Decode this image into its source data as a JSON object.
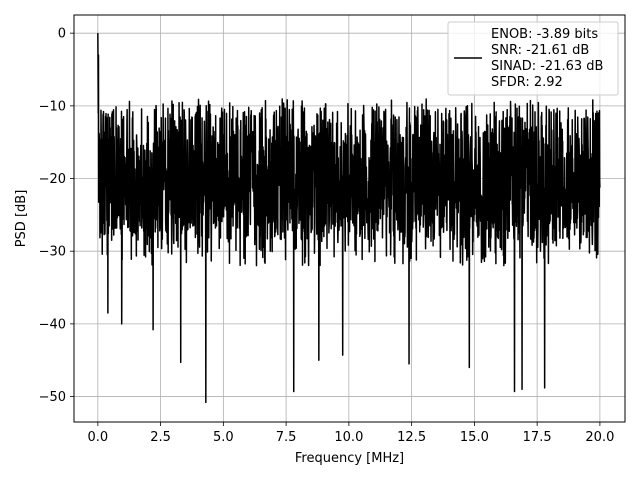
{
  "chart_data": {
    "type": "line",
    "title": "",
    "xlabel": "Frequency [MHz]",
    "ylabel": "PSD [dB]",
    "xlim": [
      -0.95,
      21.0
    ],
    "ylim": [
      -53.5,
      2.5
    ],
    "xticks": [
      0.0,
      2.5,
      5.0,
      7.5,
      10.0,
      12.5,
      15.0,
      17.5,
      20.0
    ],
    "xtick_labels": [
      "0.0",
      "2.5",
      "5.0",
      "7.5",
      "10.0",
      "12.5",
      "15.0",
      "17.5",
      "20.0"
    ],
    "yticks": [
      0,
      -10,
      -20,
      -30,
      -40,
      -50
    ],
    "ytick_labels": [
      "0",
      "−10",
      "−20",
      "−30",
      "−40",
      "−50"
    ],
    "grid": true,
    "legend_position": "top-right",
    "series": [
      {
        "color": "#000000",
        "x_range": [
          0.0,
          20.0
        ],
        "peak": {
          "x": 0.0,
          "y": 0
        },
        "noise_floor_typical_range": [
          -29,
          -10
        ],
        "notable_dips": [
          {
            "x": 0.4,
            "y": -38.5
          },
          {
            "x": 0.95,
            "y": -40.0
          },
          {
            "x": 2.2,
            "y": -40.8
          },
          {
            "x": 3.3,
            "y": -45.3
          },
          {
            "x": 4.3,
            "y": -50.8
          },
          {
            "x": 7.8,
            "y": -49.3
          },
          {
            "x": 8.8,
            "y": -45.0
          },
          {
            "x": 9.75,
            "y": -44.3
          },
          {
            "x": 12.4,
            "y": -45.5
          },
          {
            "x": 14.8,
            "y": -46.0
          },
          {
            "x": 16.6,
            "y": -49.3
          },
          {
            "x": 16.9,
            "y": -49.0
          },
          {
            "x": 17.8,
            "y": -48.8
          }
        ]
      }
    ],
    "legend_lines": [
      "ENOB: -3.89 bits",
      "SNR: -21.61 dB",
      "SINAD: -21.63 dB",
      "SFDR: 2.92"
    ]
  }
}
